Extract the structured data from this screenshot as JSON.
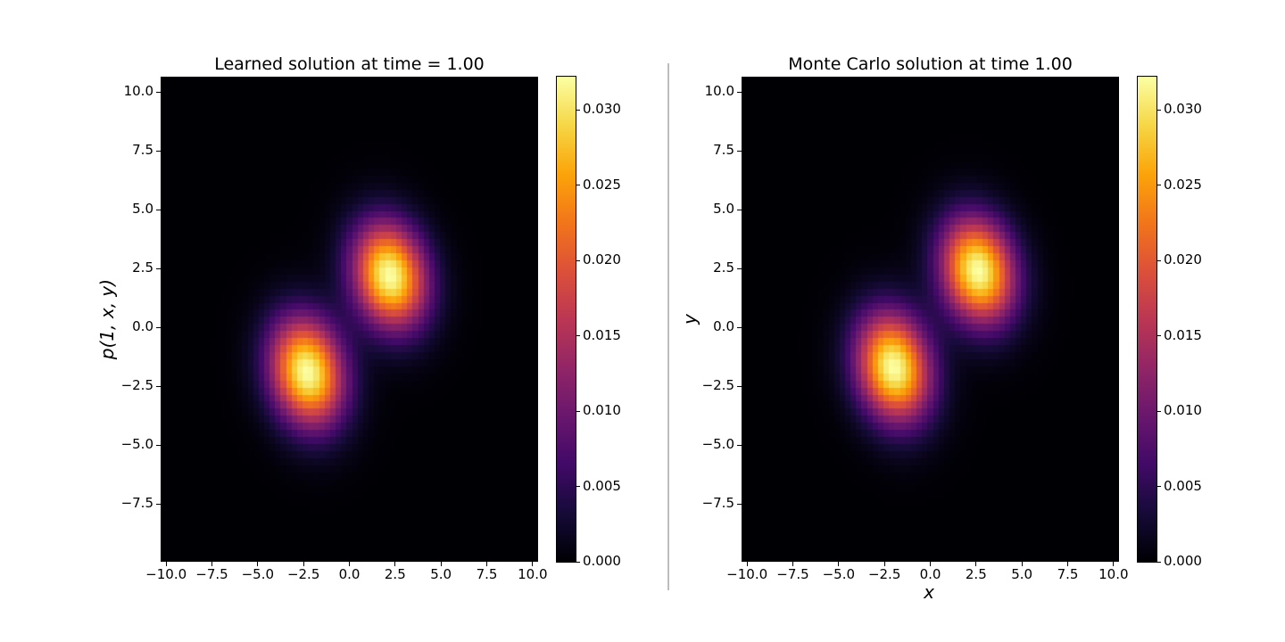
{
  "chart_data": [
    {
      "type": "heatmap",
      "title": "Learned solution at time = 1.00",
      "xlabel": "",
      "ylabel": "p(1, x, y)",
      "xlim": [
        -10.3,
        10.3
      ],
      "ylim": [
        -9.95,
        10.65
      ],
      "xticks": [
        "−10.0",
        "−7.5",
        "−5.0",
        "−2.5",
        "0.0",
        "2.5",
        "5.0",
        "7.5",
        "10.0"
      ],
      "xtick_values": [
        -10,
        -7.5,
        -5,
        -2.5,
        0,
        2.5,
        5,
        7.5,
        10
      ],
      "yticks": [
        "10.0",
        "7.5",
        "5.0",
        "2.5",
        "0.0",
        "−2.5",
        "−5.0",
        "−7.5"
      ],
      "ytick_values": [
        10,
        7.5,
        5,
        2.5,
        0,
        -2.5,
        -5,
        -7.5
      ],
      "colormap": "inferno",
      "vmin": 0.0,
      "vmax": 0.0322,
      "colorbar_ticks": [
        "0.030",
        "0.025",
        "0.020",
        "0.015",
        "0.010",
        "0.005",
        "0.000"
      ],
      "colorbar_values": [
        0.03,
        0.025,
        0.02,
        0.015,
        0.01,
        0.005,
        0.0
      ],
      "peaks": [
        {
          "x": 2.2,
          "y": 2.2,
          "sx": 1.4,
          "sy": 1.55,
          "rho": -0.15,
          "amp": 0.0322
        },
        {
          "x": -2.3,
          "y": -1.9,
          "sx": 1.4,
          "sy": 1.6,
          "rho": -0.15,
          "amp": 0.0322
        }
      ]
    },
    {
      "type": "heatmap",
      "title": "Monte Carlo solution at time 1.00",
      "xlabel": "x",
      "ylabel": "y",
      "xlim": [
        -10.3,
        10.3
      ],
      "ylim": [
        -9.95,
        10.65
      ],
      "xticks": [
        "−10.0",
        "−7.5",
        "−5.0",
        "−2.5",
        "0.0",
        "2.5",
        "5.0",
        "7.5",
        "10.0"
      ],
      "xtick_values": [
        -10,
        -7.5,
        -5,
        -2.5,
        0,
        2.5,
        5,
        7.5,
        10
      ],
      "yticks": [
        "10.0",
        "7.5",
        "5.0",
        "2.5",
        "0.0",
        "−2.5",
        "−5.0",
        "−7.5"
      ],
      "ytick_values": [
        10,
        7.5,
        5,
        2.5,
        0,
        -2.5,
        -5,
        -7.5
      ],
      "colormap": "inferno",
      "vmin": 0.0,
      "vmax": 0.0322,
      "colorbar_ticks": [
        "0.030",
        "0.025",
        "0.020",
        "0.015",
        "0.010",
        "0.005",
        "0.000"
      ],
      "colorbar_values": [
        0.03,
        0.025,
        0.02,
        0.015,
        0.01,
        0.005,
        0.0
      ],
      "peaks": [
        {
          "x": 2.6,
          "y": 2.4,
          "sx": 1.4,
          "sy": 1.55,
          "rho": -0.15,
          "amp": 0.0322
        },
        {
          "x": -2.0,
          "y": -1.7,
          "sx": 1.4,
          "sy": 1.6,
          "rho": -0.15,
          "amp": 0.0322
        }
      ]
    }
  ]
}
